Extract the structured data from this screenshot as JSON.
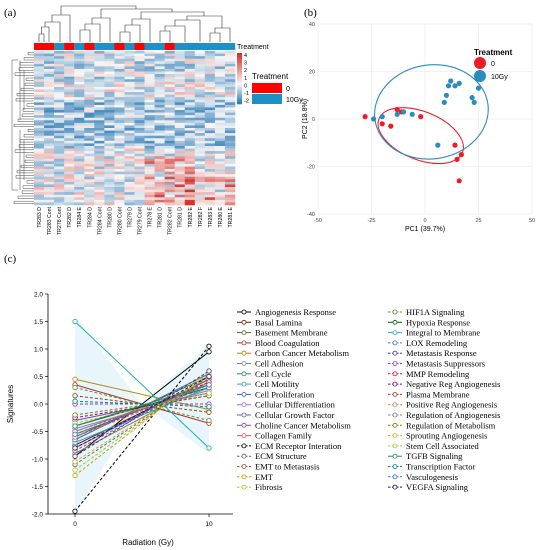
{
  "panel_labels": [
    "(a)",
    "(b)",
    "(c)"
  ],
  "heatmap": {
    "title": "Treatment",
    "legend_title": "Treatment",
    "legend_items": [
      {
        "label": "0",
        "color": "#ff0000"
      },
      {
        "label": "10Gy",
        "color": "#1e90c8"
      }
    ],
    "colorbar_ticks": [
      "4",
      "3",
      "2",
      "1",
      "0",
      "-1",
      "-2"
    ],
    "column_labels": [
      "TR283 D",
      "TR283 Cont",
      "TR278 Cont",
      "TR282 D",
      "TR284 E",
      "TR284 D",
      "TR284 Cont",
      "TR280 D",
      "TR280 Cont",
      "TR279 D",
      "TR279 Cont",
      "TR278 E",
      "TR281 D",
      "TR282 Cont",
      "TR281 D",
      "TR282 E",
      "TR282 F",
      "TR283 E",
      "TR280 E",
      "TR281 E"
    ],
    "column_treatment": [
      0,
      0,
      1,
      0,
      1,
      0,
      1,
      1,
      0,
      1,
      0,
      1,
      1,
      0,
      1,
      1,
      1,
      1,
      1,
      1
    ],
    "colors": {
      "high": "#d73027",
      "mid": "#f7f7f7",
      "low": "#2c7bb6"
    }
  },
  "chart_data": [
    {
      "type": "scatter",
      "xlabel": "PC1 (39.7%)",
      "ylabel": "PC2 (18.8%)",
      "xlim": [
        -50,
        50
      ],
      "ylim": [
        -40,
        40
      ],
      "xticks": [
        -50,
        -25,
        0,
        25,
        50
      ],
      "yticks": [
        -40,
        -20,
        0,
        20,
        40
      ],
      "grid": true,
      "legend_title": "Treatment",
      "legend_position": "top-left",
      "series": [
        {
          "name": "0",
          "color": "#ee1c25",
          "x": [
            -28,
            -20,
            -16,
            -13,
            -11,
            14,
            15,
            16,
            17,
            -2
          ],
          "y": [
            1,
            -2,
            -3,
            4,
            3,
            -11,
            -17,
            -26,
            -15,
            1
          ]
        },
        {
          "name": "10Gy",
          "color": "#2b8cbe",
          "x": [
            -24,
            -20,
            -13,
            -10,
            9,
            10,
            11,
            12,
            14,
            16,
            22,
            23,
            25,
            6,
            -6
          ],
          "y": [
            0,
            1,
            2,
            3,
            7,
            10,
            14,
            16,
            14,
            15,
            9,
            7,
            13,
            -11,
            2
          ]
        }
      ],
      "ellipses": [
        {
          "series": "0",
          "color": "#ee1c25"
        },
        {
          "series": "10Gy",
          "color": "#2b8cbe"
        }
      ]
    },
    {
      "type": "line",
      "xlabel": "Radiation (Gy)",
      "ylabel": "Signatures",
      "x": [
        0,
        10
      ],
      "xticks": [
        0,
        10
      ],
      "ylim": [
        -2.0,
        2.0
      ],
      "yticks": [
        -2.0,
        -1.5,
        -1.0,
        -0.5,
        0.0,
        0.5,
        1.0,
        1.5,
        2.0
      ],
      "legend_position": "right",
      "series": [
        {
          "name": "Angiogenesis Response",
          "color": "#000000",
          "style": "solid",
          "values": [
            -0.95,
            0.95
          ]
        },
        {
          "name": "Basal Lamina",
          "color": "#8c1010",
          "style": "solid",
          "values": [
            -0.75,
            0.45
          ]
        },
        {
          "name": "Basement Membrane",
          "color": "#556b2f",
          "style": "solid",
          "values": [
            -0.6,
            0.5
          ]
        },
        {
          "name": "Blood Coagulation",
          "color": "#b03030",
          "style": "solid",
          "values": [
            0.35,
            -0.35
          ]
        },
        {
          "name": "Carbon Cancer Metabolism",
          "color": "#b8860b",
          "style": "solid",
          "values": [
            0.45,
            -0.1
          ]
        },
        {
          "name": "Cell Adhesion",
          "color": "#7f7f7f",
          "style": "solid",
          "values": [
            -0.9,
            0.4
          ]
        },
        {
          "name": "Cell Cycle",
          "color": "#2e8b57",
          "style": "solid",
          "values": [
            -0.55,
            0.35
          ]
        },
        {
          "name": "Cell Motility",
          "color": "#20b2aa",
          "style": "solid",
          "values": [
            -0.7,
            0.3
          ]
        },
        {
          "name": "Cell Proliferation",
          "color": "#3a5fcd",
          "style": "solid",
          "values": [
            -0.65,
            0.55
          ]
        },
        {
          "name": "Cellular Differentiation",
          "color": "#9370db",
          "style": "solid",
          "values": [
            -0.45,
            0.25
          ]
        },
        {
          "name": "Cellular Growth Factor",
          "color": "#6a5acd",
          "style": "solid",
          "values": [
            -0.8,
            0.45
          ]
        },
        {
          "name": "Choline Cancer Metabolism",
          "color": "#8b4789",
          "style": "solid",
          "values": [
            -0.3,
            0.2
          ]
        },
        {
          "name": "Collagen Family",
          "color": "#cd5c5c",
          "style": "solid",
          "values": [
            -0.5,
            0.35
          ]
        },
        {
          "name": "ECM Receptor Interation",
          "color": "#000000",
          "style": "dashed",
          "values": [
            -1.95,
            1.05
          ]
        },
        {
          "name": "ECM Structure",
          "color": "#696969",
          "style": "dashed",
          "values": [
            -1.1,
            0.5
          ]
        },
        {
          "name": "EMT to Metastasis",
          "color": "#a0522d",
          "style": "dashed",
          "values": [
            -0.85,
            0.45
          ]
        },
        {
          "name": "EMT",
          "color": "#c8a000",
          "style": "dashed",
          "values": [
            -1.3,
            0.6
          ]
        },
        {
          "name": "Fibrosis",
          "color": "#9acd32",
          "style": "dashed",
          "values": [
            -1.2,
            0.55
          ]
        },
        {
          "name": "HIF1A Signaling",
          "color": "#6b8e23",
          "style": "dashed",
          "values": [
            0.3,
            -0.3
          ]
        },
        {
          "name": "Hypoxia Response",
          "color": "#006400",
          "style": "solid",
          "values": [
            -0.4,
            0.3
          ]
        },
        {
          "name": "Integral to Membrane",
          "color": "#20b2aa",
          "style": "solid",
          "values": [
            1.5,
            -0.8
          ]
        },
        {
          "name": "LOX Remodeling",
          "color": "#4682b4",
          "style": "dashed",
          "values": [
            -0.55,
            0.35
          ]
        },
        {
          "name": "Metastasis Response",
          "color": "#483d8b",
          "style": "dashed",
          "values": [
            -0.95,
            0.6
          ]
        },
        {
          "name": "Metastasis Suppressors",
          "color": "#9932cc",
          "style": "dashed",
          "values": [
            0.0,
            0.0
          ]
        },
        {
          "name": "MMP Remodeling",
          "color": "#dc143c",
          "style": "dashed",
          "values": [
            -0.6,
            0.4
          ]
        },
        {
          "name": "Negative Reg Angiogenesis",
          "color": "#8b008b",
          "style": "dashed",
          "values": [
            -0.25,
            0.15
          ]
        },
        {
          "name": "Plasma Membrane",
          "color": "#8b4513",
          "style": "dashed",
          "values": [
            0.15,
            -0.15
          ]
        },
        {
          "name": "Positive Reg Angiogenesis",
          "color": "#cd853f",
          "style": "dashed",
          "values": [
            -0.6,
            0.35
          ]
        },
        {
          "name": "Regulation of Angiogenesis",
          "color": "#808080",
          "style": "dashed",
          "values": [
            -0.5,
            0.3
          ]
        },
        {
          "name": "Regulation of Metabolism",
          "color": "#808000",
          "style": "dashed",
          "values": [
            -0.2,
            0.15
          ]
        },
        {
          "name": "Sprouting Angiogenesis",
          "color": "#daa520",
          "style": "dashed",
          "values": [
            -1.05,
            0.5
          ]
        },
        {
          "name": "Stem Cell Associated",
          "color": "#9acd32",
          "style": "dashed",
          "values": [
            -0.35,
            0.2
          ]
        },
        {
          "name": "TGFB Signaling",
          "color": "#2e8b57",
          "style": "solid",
          "values": [
            -0.4,
            0.35
          ]
        },
        {
          "name": "Transcription Factor",
          "color": "#008b8b",
          "style": "dashed",
          "values": [
            0.05,
            -0.05
          ]
        },
        {
          "name": "Vasculogenesis",
          "color": "#4169e1",
          "style": "dashed",
          "values": [
            -0.55,
            0.35
          ]
        },
        {
          "name": "VEGFA Signaling",
          "color": "#191970",
          "style": "dashed",
          "values": [
            -0.8,
            0.5
          ]
        }
      ]
    }
  ]
}
